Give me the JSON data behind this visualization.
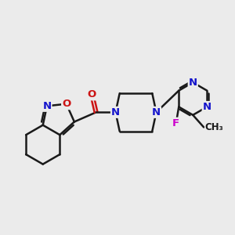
{
  "background_color": "#ebebeb",
  "bond_color": "#1a1a1a",
  "N_color": "#1414cc",
  "O_color": "#cc1414",
  "F_color": "#cc00cc",
  "bond_width": 1.8,
  "figsize": [
    3.0,
    3.0
  ],
  "dpi": 100,
  "xlim": [
    0.5,
    9.0
  ],
  "ylim": [
    1.5,
    7.5
  ]
}
